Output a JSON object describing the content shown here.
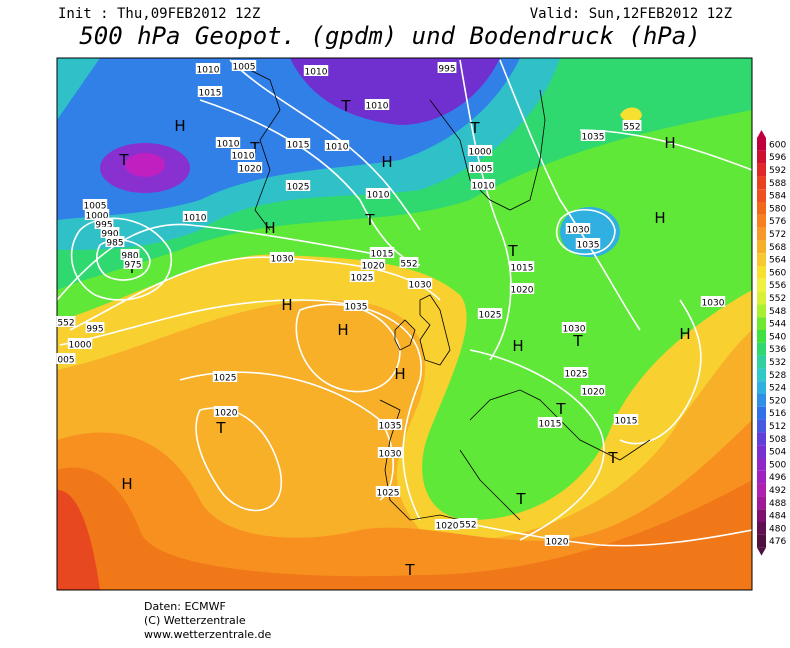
{
  "header": {
    "init": "Init : Thu,09FEB2012 12Z",
    "valid": "Valid: Sun,12FEB2012 12Z",
    "title": "500 hPa Geopot. (gpdm) und Bodendruck (hPa)"
  },
  "colorbar": {
    "values": [
      600,
      596,
      592,
      588,
      584,
      580,
      576,
      572,
      568,
      564,
      560,
      556,
      552,
      548,
      544,
      540,
      536,
      532,
      528,
      524,
      520,
      516,
      512,
      508,
      504,
      500,
      496,
      492,
      488,
      484,
      480,
      476
    ],
    "colors": [
      "#c0003c",
      "#d01030",
      "#e02828",
      "#e84020",
      "#f05020",
      "#f06818",
      "#f88020",
      "#f89828",
      "#f8b028",
      "#f8c830",
      "#f8e030",
      "#f0f040",
      "#d8f038",
      "#a8f030",
      "#70e830",
      "#40e040",
      "#30d870",
      "#30d0a0",
      "#30c8c8",
      "#30b0e0",
      "#3090e8",
      "#3070e8",
      "#4858e0",
      "#6040d8",
      "#7830d0",
      "#9028c8",
      "#a020c0",
      "#b020b0",
      "#a01898",
      "#801070",
      "#601050",
      "#501040"
    ]
  },
  "map": {
    "labels": [
      "H",
      "H",
      "H",
      "H",
      "H",
      "H",
      "H",
      "H",
      "H",
      "H",
      "H",
      "T",
      "T",
      "T",
      "T",
      "T",
      "T",
      "T",
      "T",
      "T",
      "T",
      "T",
      "T",
      "T",
      "1005",
      "1010",
      "995",
      "1010",
      "1015",
      "1010",
      "552",
      "1035",
      "1010",
      "1010",
      "1015",
      "1010",
      "1000",
      "1005",
      "1020",
      "1025",
      "1010",
      "1010",
      "1005",
      "1000",
      "995",
      "990",
      "985",
      "1010",
      "1030",
      "1035",
      "980",
      "975",
      "1015",
      "552",
      "1030",
      "1020",
      "1025",
      "1015",
      "1030",
      "1020",
      "1035",
      "552",
      "995",
      "1000",
      "005",
      "1025",
      "1030",
      "1030",
      "1025",
      "1020",
      "1025",
      "1020",
      "1015",
      "1015",
      "1035",
      "1030",
      "1025",
      "1020",
      "552",
      "1020"
    ]
  },
  "footer": {
    "lines": [
      "Daten: ECMWF",
      "(C) Wetterzentrale",
      "www.wetterzentrale.de"
    ]
  }
}
